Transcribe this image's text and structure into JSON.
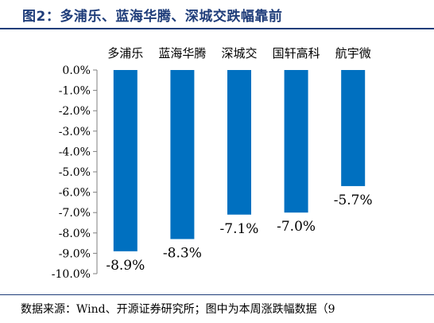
{
  "title": "图2：多浦乐、蓝海华腾、深城交跌幅靠前",
  "source": "数据来源：Wind、开源证券研究所；图中为本周涨跌幅数据（9",
  "chart_data": {
    "type": "bar",
    "categories": [
      "多浦乐",
      "蓝海华腾",
      "深城交",
      "国轩高科",
      "航宇微"
    ],
    "values": [
      -8.9,
      -8.3,
      -7.1,
      -7.0,
      -5.7
    ],
    "value_labels": [
      "-8.9%",
      "-8.3%",
      "-7.1%",
      "-7.0%",
      "-5.7%"
    ],
    "ylim": [
      -10,
      0
    ],
    "yticks": [
      0,
      -1,
      -2,
      -3,
      -4,
      -5,
      -6,
      -7,
      -8,
      -9,
      -10
    ],
    "ytick_labels": [
      "0.0%",
      "-1.0%",
      "-2.0%",
      "-3.0%",
      "-4.0%",
      "-5.0%",
      "-6.0%",
      "-7.0%",
      "-8.0%",
      "-9.0%",
      "-10.0%"
    ],
    "bar_color": "#0070c0",
    "category_position": "top",
    "grid": false,
    "legend": false
  }
}
